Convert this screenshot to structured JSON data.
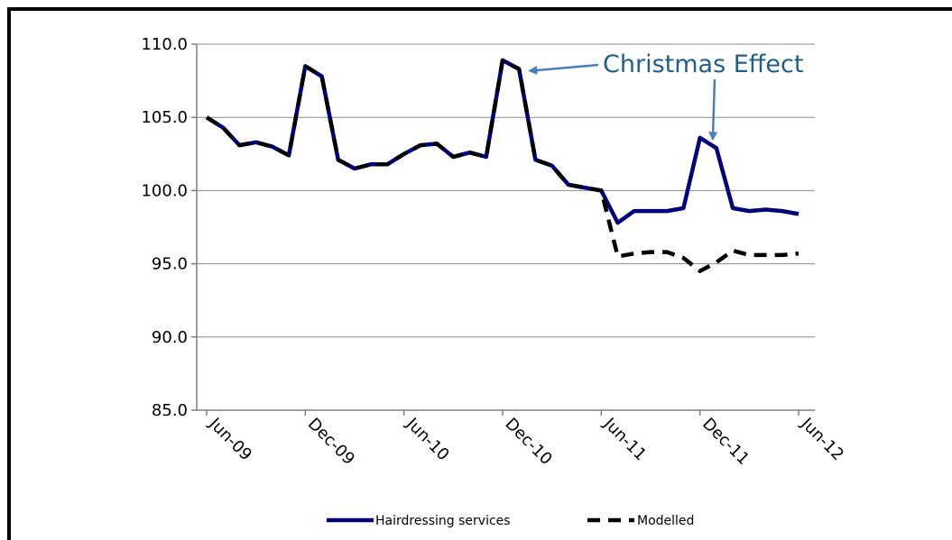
{
  "chart_data": {
    "type": "line",
    "title": "",
    "xlabel": "",
    "ylabel": "",
    "ylim": [
      85,
      110
    ],
    "yticks": [
      85,
      90,
      95,
      100,
      105,
      110
    ],
    "ytick_labels": [
      "85.0",
      "90.0",
      "95.0",
      "100.0",
      "105.0",
      "110.0"
    ],
    "x": [
      "Jun-09",
      "Jul-09",
      "Aug-09",
      "Sep-09",
      "Oct-09",
      "Nov-09",
      "Dec-09",
      "Jan-10",
      "Feb-10",
      "Mar-10",
      "Apr-10",
      "May-10",
      "Jun-10",
      "Jul-10",
      "Aug-10",
      "Sep-10",
      "Oct-10",
      "Nov-10",
      "Dec-10",
      "Jan-11",
      "Feb-11",
      "Mar-11",
      "Apr-11",
      "May-11",
      "Jun-11",
      "Jul-11",
      "Aug-11",
      "Sep-11",
      "Oct-11",
      "Nov-11",
      "Dec-11",
      "Jan-12",
      "Feb-12",
      "Mar-12",
      "Apr-12",
      "May-12",
      "Jun-12"
    ],
    "xtick_labels": [
      "Jun-09",
      "Dec-09",
      "Jun-10",
      "Dec-10",
      "Jun-11",
      "Dec-11",
      "Jun-12"
    ],
    "xtick_index": [
      0,
      6,
      12,
      18,
      24,
      30,
      36
    ],
    "grid": "horizontal",
    "legend_position": "bottom",
    "series": [
      {
        "name": "Hairdressing services",
        "color": "#00007a",
        "style": "solid",
        "values": [
          105.0,
          104.3,
          103.1,
          103.3,
          103.0,
          102.4,
          108.5,
          107.8,
          102.1,
          101.5,
          101.8,
          101.8,
          102.5,
          103.1,
          103.2,
          102.3,
          102.6,
          102.3,
          108.9,
          108.3,
          102.1,
          101.7,
          100.4,
          100.2,
          100.0,
          97.8,
          98.6,
          98.6,
          98.6,
          98.8,
          103.6,
          102.9,
          98.8,
          98.6,
          98.7,
          98.6,
          98.4
        ]
      },
      {
        "name": "Modelled",
        "color": "#000000",
        "style": "dashed",
        "values": [
          105.0,
          104.3,
          103.1,
          103.3,
          103.0,
          102.4,
          108.5,
          107.8,
          102.1,
          101.5,
          101.8,
          101.8,
          102.5,
          103.1,
          103.2,
          102.3,
          102.6,
          102.3,
          108.9,
          108.3,
          102.1,
          101.7,
          100.4,
          100.2,
          100.0,
          95.5,
          95.7,
          95.8,
          95.8,
          95.4,
          94.5,
          95.1,
          95.9,
          95.6,
          95.6,
          95.6,
          95.7
        ]
      }
    ],
    "annotations": [
      {
        "text": "Christmas Effect",
        "points_to": [
          "Dec-10",
          "Dec-11"
        ]
      }
    ]
  }
}
